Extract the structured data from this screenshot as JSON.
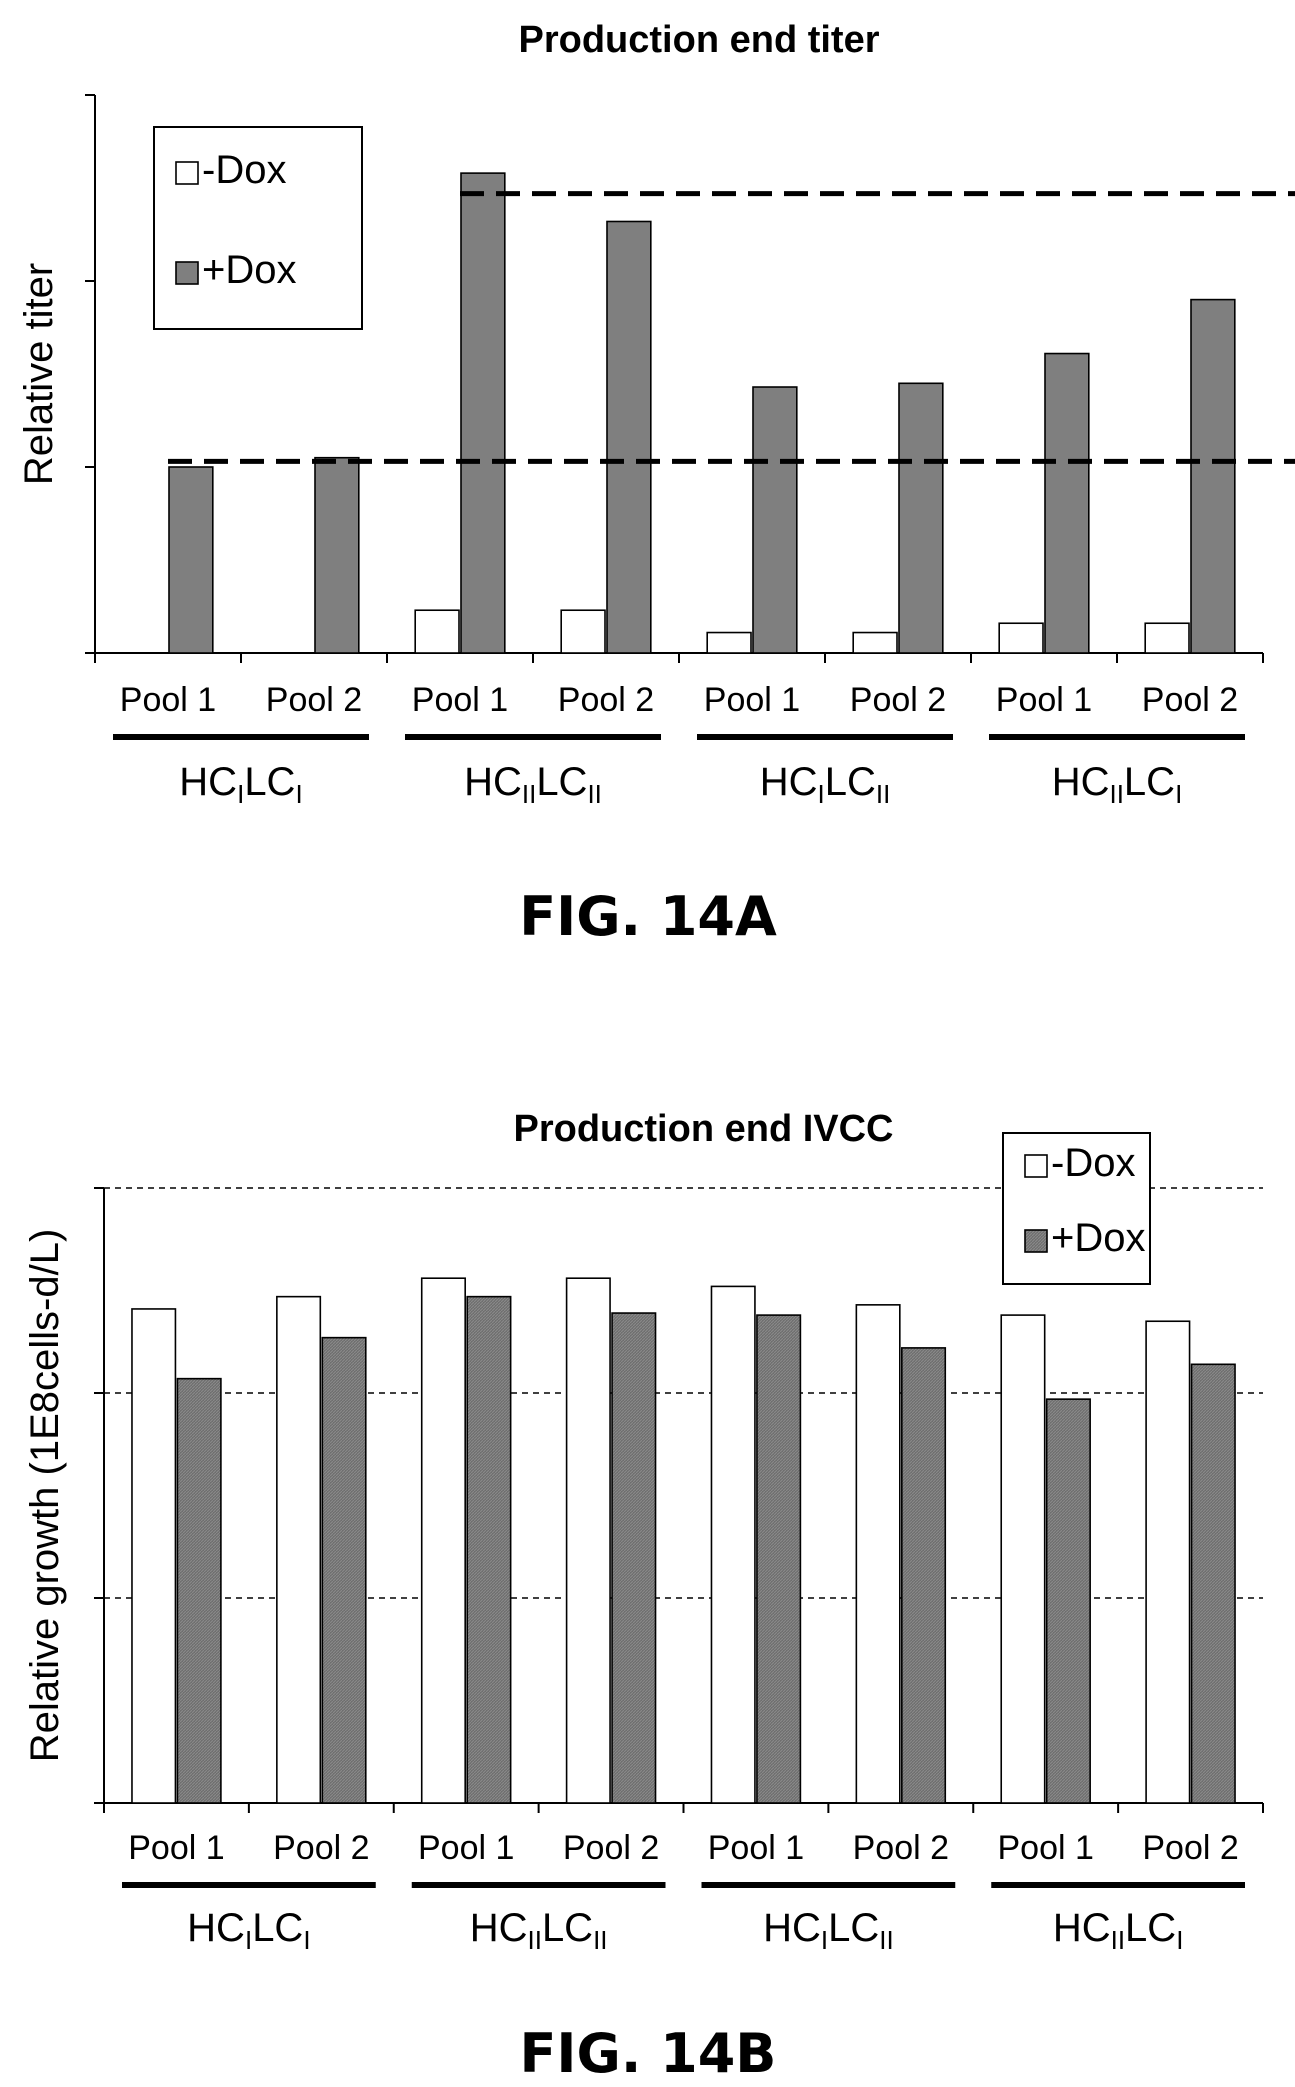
{
  "chart_data": [
    {
      "type": "bar",
      "title": "Production end titer",
      "xlabel": "",
      "ylabel": "Relative titer",
      "ylim": [
        0,
        3
      ],
      "y_ticks": [
        0,
        1,
        2,
        3
      ],
      "y_tick_labels_shown": false,
      "grid": false,
      "legend_position": "top-left",
      "categories": [
        "Pool 1",
        "Pool 2",
        "Pool 1",
        "Pool 2",
        "Pool 1",
        "Pool 2",
        "Pool 1",
        "Pool 2"
      ],
      "groups": [
        {
          "label": {
            "base": "HC",
            "sub1": "I",
            "mid": "LC",
            "sub2": "I"
          }
        },
        {
          "label": {
            "base": "HC",
            "sub1": "II",
            "mid": "LC",
            "sub2": "II"
          }
        },
        {
          "label": {
            "base": "HC",
            "sub1": "I",
            "mid": "LC",
            "sub2": "II"
          }
        },
        {
          "label": {
            "base": "HC",
            "sub1": "II",
            "mid": "LC",
            "sub2": "I"
          }
        }
      ],
      "series": [
        {
          "name": "-Dox",
          "color": "#ffffff",
          "values": [
            0,
            0,
            0.23,
            0.23,
            0.11,
            0.11,
            0.16,
            0.16
          ]
        },
        {
          "name": "+Dox",
          "color": "#7f7f7f",
          "values": [
            1.0,
            1.05,
            2.58,
            2.32,
            1.43,
            1.45,
            1.61,
            1.9
          ]
        }
      ],
      "reference_lines": [
        1.03,
        2.47
      ],
      "figure_label": "FIG. 14A"
    },
    {
      "type": "bar",
      "title": "Production end IVCC",
      "xlabel": "",
      "ylabel": "Relative growth (1E8cells-d/L)",
      "ylim": [
        0,
        3
      ],
      "y_ticks": [
        0,
        1,
        2,
        3
      ],
      "y_tick_labels_shown": false,
      "grid": true,
      "legend_position": "top-right",
      "categories": [
        "Pool 1",
        "Pool 2",
        "Pool 1",
        "Pool 2",
        "Pool 1",
        "Pool 2",
        "Pool 1",
        "Pool 2"
      ],
      "groups": [
        {
          "label": {
            "base": "HC",
            "sub1": "I",
            "mid": "LC",
            "sub2": "I"
          }
        },
        {
          "label": {
            "base": "HC",
            "sub1": "II",
            "mid": "LC",
            "sub2": "II"
          }
        },
        {
          "label": {
            "base": "HC",
            "sub1": "I",
            "mid": "LC",
            "sub2": "II"
          }
        },
        {
          "label": {
            "base": "HC",
            "sub1": "II",
            "mid": "LC",
            "sub2": "I"
          }
        }
      ],
      "series": [
        {
          "name": "-Dox",
          "color": "#ffffff",
          "values": [
            2.41,
            2.47,
            2.56,
            2.56,
            2.52,
            2.43,
            2.38,
            2.35
          ]
        },
        {
          "name": "+Dox",
          "color": "#6e6e6e",
          "values": [
            2.07,
            2.27,
            2.47,
            2.39,
            2.38,
            2.22,
            1.97,
            2.14
          ]
        }
      ],
      "figure_label": "FIG. 14B"
    }
  ]
}
